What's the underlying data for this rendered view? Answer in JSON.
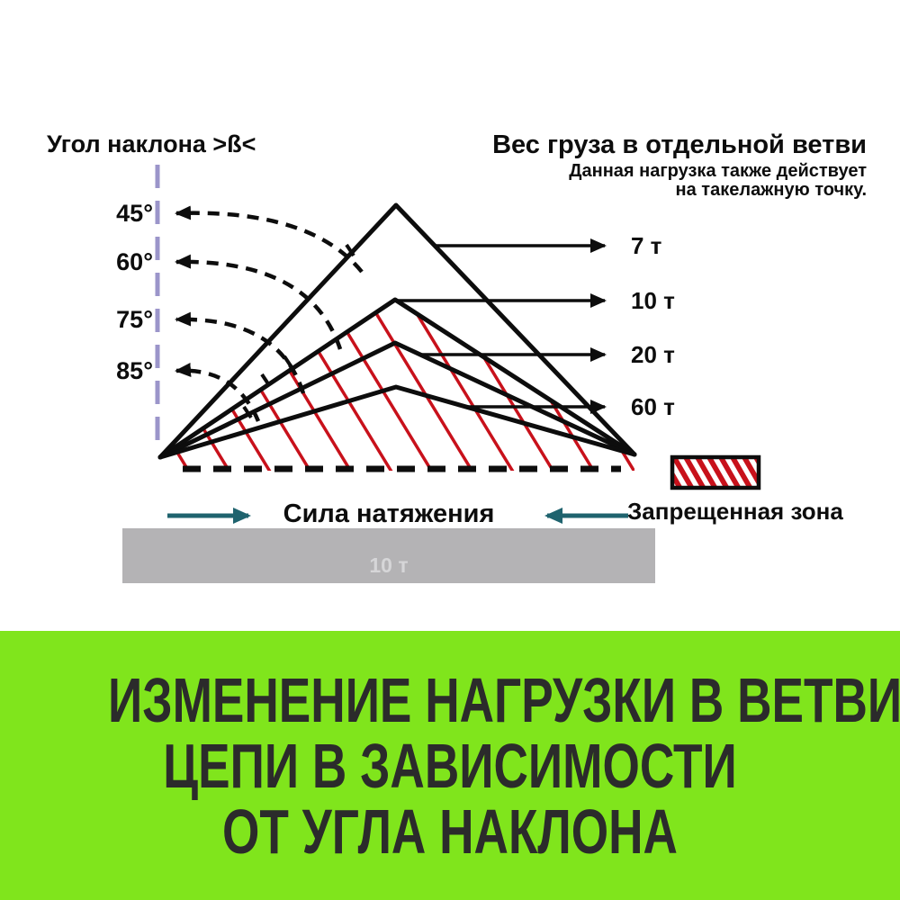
{
  "colors": {
    "banner_green": "#80e51c",
    "banner_text": "#2b2b2b",
    "line_black": "#0d0d0d",
    "hatch_red": "#c8111b",
    "lavender": "#9b95ca",
    "teal": "#1f636e",
    "gray_bar": "#b4b3b5",
    "gray_bar_text": "#d6d6d8"
  },
  "diagram": {
    "angle_axis_title": "Угол наклона >ß<",
    "weight_title": "Вес груза в отдельной ветви",
    "weight_subtitle_line1": "Данная нагрузка также действует",
    "weight_subtitle_line2": "на такелажную точку.",
    "angle_labels": [
      "45°",
      "60°",
      "75°",
      "85°"
    ],
    "weight_labels": [
      "7 т",
      "10 т",
      "20 т",
      "60 т"
    ],
    "tension_label": "Сила натяжения",
    "bar_value": "10 т",
    "forbidden_zone_label": "Запрещенная зона"
  },
  "banner": {
    "line1": "ИЗМЕНЕНИЕ НАГРУЗКИ В ВЕТВИ",
    "line2": "ЦЕПИ В ЗАВИСИМОСТИ",
    "line3": "ОТ УГЛА НАКЛОНА"
  }
}
